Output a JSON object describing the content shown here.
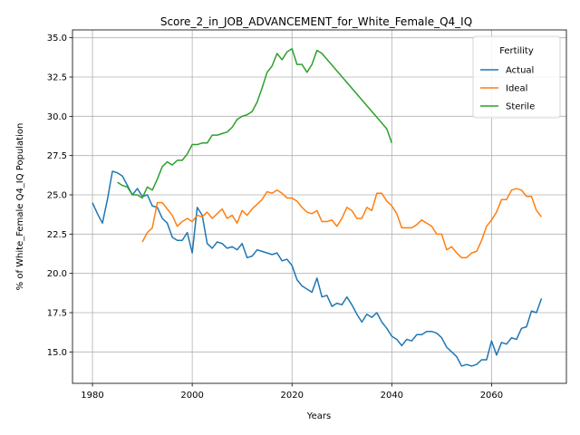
{
  "chart_data": {
    "type": "line",
    "title": "Score_2_in_JOB_ADVANCEMENT_for_White_Female_Q4_IQ",
    "xlabel": "Years",
    "ylabel": "% of White_Female Q4_IQ Population",
    "xlim": [
      1976,
      2075
    ],
    "ylim": [
      13.0,
      35.5
    ],
    "xticks": [
      1980,
      2000,
      2020,
      2040,
      2060
    ],
    "yticks": [
      15.0,
      17.5,
      20.0,
      22.5,
      25.0,
      27.5,
      30.0,
      32.5,
      35.0
    ],
    "grid": true,
    "legend": {
      "title": "Fertility",
      "position": "top-right"
    },
    "series": [
      {
        "name": "Actual",
        "color": "#1f77b4",
        "x": [
          1980,
          1981,
          1982,
          1983,
          1984,
          1985,
          1986,
          1987,
          1988,
          1989,
          1990,
          1991,
          1992,
          1993,
          1994,
          1995,
          1996,
          1997,
          1998,
          1999,
          2000,
          2001,
          2002,
          2003,
          2004,
          2005,
          2006,
          2007,
          2008,
          2009,
          2010,
          2011,
          2012,
          2013,
          2014,
          2015,
          2016,
          2017,
          2018,
          2019,
          2020,
          2021,
          2022,
          2023,
          2024,
          2025,
          2026,
          2027,
          2028,
          2029,
          2030,
          2031,
          2032,
          2033,
          2034,
          2035,
          2036,
          2037,
          2038,
          2039,
          2040,
          2041,
          2042,
          2043,
          2044,
          2045,
          2046,
          2047,
          2048,
          2049,
          2050,
          2051,
          2052,
          2053,
          2054,
          2055,
          2056,
          2057,
          2058,
          2059,
          2060,
          2061,
          2062,
          2063,
          2064,
          2065,
          2066,
          2067,
          2068,
          2069,
          2070
        ],
        "y": [
          24.5,
          23.8,
          23.2,
          24.7,
          26.5,
          26.4,
          26.2,
          25.6,
          25.0,
          25.4,
          24.9,
          25.0,
          24.3,
          24.2,
          23.5,
          23.2,
          22.3,
          22.1,
          22.1,
          22.6,
          21.3,
          24.2,
          23.7,
          21.9,
          21.6,
          22.0,
          21.9,
          21.6,
          21.7,
          21.5,
          21.9,
          21.0,
          21.1,
          21.5,
          21.4,
          21.3,
          21.2,
          21.3,
          20.8,
          20.9,
          20.5,
          19.6,
          19.2,
          19.0,
          18.8,
          19.7,
          18.5,
          18.6,
          17.9,
          18.1,
          18.0,
          18.5,
          18.0,
          17.4,
          16.9,
          17.4,
          17.2,
          17.5,
          16.9,
          16.5,
          16.0,
          15.8,
          15.4,
          15.8,
          15.7,
          16.1,
          16.1,
          16.3,
          16.3,
          16.2,
          15.9,
          15.3,
          15.0,
          14.7,
          14.1,
          14.2,
          14.1,
          14.2,
          14.5,
          14.5,
          15.7,
          14.8,
          15.6,
          15.5,
          15.9,
          15.8,
          16.5,
          16.6,
          17.6,
          17.5,
          18.4
        ]
      },
      {
        "name": "Ideal",
        "color": "#ff7f0e",
        "x": [
          1990,
          1991,
          1992,
          1993,
          1994,
          1995,
          1996,
          1997,
          1998,
          1999,
          2000,
          2001,
          2002,
          2003,
          2004,
          2005,
          2006,
          2007,
          2008,
          2009,
          2010,
          2011,
          2012,
          2013,
          2014,
          2015,
          2016,
          2017,
          2018,
          2019,
          2020,
          2021,
          2022,
          2023,
          2024,
          2025,
          2026,
          2027,
          2028,
          2029,
          2030,
          2031,
          2032,
          2033,
          2034,
          2035,
          2036,
          2037,
          2038,
          2039,
          2040,
          2041,
          2042,
          2043,
          2044,
          2045,
          2046,
          2047,
          2048,
          2049,
          2050,
          2051,
          2052,
          2053,
          2054,
          2055,
          2056,
          2057,
          2058,
          2059,
          2060,
          2061,
          2062,
          2063,
          2064,
          2065,
          2066,
          2067,
          2068,
          2069,
          2070
        ],
        "y": [
          22.0,
          22.6,
          22.9,
          24.5,
          24.5,
          24.1,
          23.7,
          23.0,
          23.3,
          23.5,
          23.3,
          23.7,
          23.6,
          23.9,
          23.5,
          23.8,
          24.1,
          23.5,
          23.7,
          23.2,
          24.0,
          23.7,
          24.1,
          24.4,
          24.7,
          25.2,
          25.1,
          25.3,
          25.1,
          24.8,
          24.8,
          24.6,
          24.2,
          23.9,
          23.8,
          24.0,
          23.3,
          23.3,
          23.4,
          23.0,
          23.5,
          24.2,
          24.0,
          23.5,
          23.5,
          24.2,
          24.0,
          25.1,
          25.1,
          24.6,
          24.3,
          23.8,
          22.9,
          22.9,
          22.9,
          23.1,
          23.4,
          23.2,
          23.0,
          22.5,
          22.5,
          21.5,
          21.7,
          21.3,
          21.0,
          21.0,
          21.3,
          21.4,
          22.1,
          23.0,
          23.4,
          23.9,
          24.7,
          24.7,
          25.3,
          25.4,
          25.3,
          24.9,
          24.9,
          24.0,
          23.6
        ]
      },
      {
        "name": "Sterile",
        "color": "#2ca02c",
        "x": [
          1985,
          1986,
          1987,
          1988,
          1989,
          1990,
          1991,
          1992,
          1993,
          1994,
          1995,
          1996,
          1997,
          1998,
          1999,
          2000,
          2001,
          2002,
          2003,
          2004,
          2005,
          2006,
          2007,
          2008,
          2009,
          2010,
          2011,
          2012,
          2013,
          2014,
          2015,
          2016,
          2017,
          2018,
          2019,
          2020,
          2021,
          2022,
          2023,
          2024,
          2025,
          2026,
          2039,
          2040
        ],
        "y": [
          25.8,
          25.6,
          25.5,
          25.0,
          25.0,
          24.8,
          25.5,
          25.3,
          26.0,
          26.8,
          27.1,
          26.9,
          27.2,
          27.2,
          27.6,
          28.2,
          28.2,
          28.3,
          28.3,
          28.8,
          28.8,
          28.9,
          29.0,
          29.3,
          29.8,
          30.0,
          30.1,
          30.3,
          30.9,
          31.8,
          32.8,
          33.2,
          34.0,
          33.6,
          34.1,
          34.3,
          33.3,
          33.3,
          32.8,
          33.3,
          34.2,
          34.0,
          29.2,
          28.3
        ]
      }
    ]
  }
}
